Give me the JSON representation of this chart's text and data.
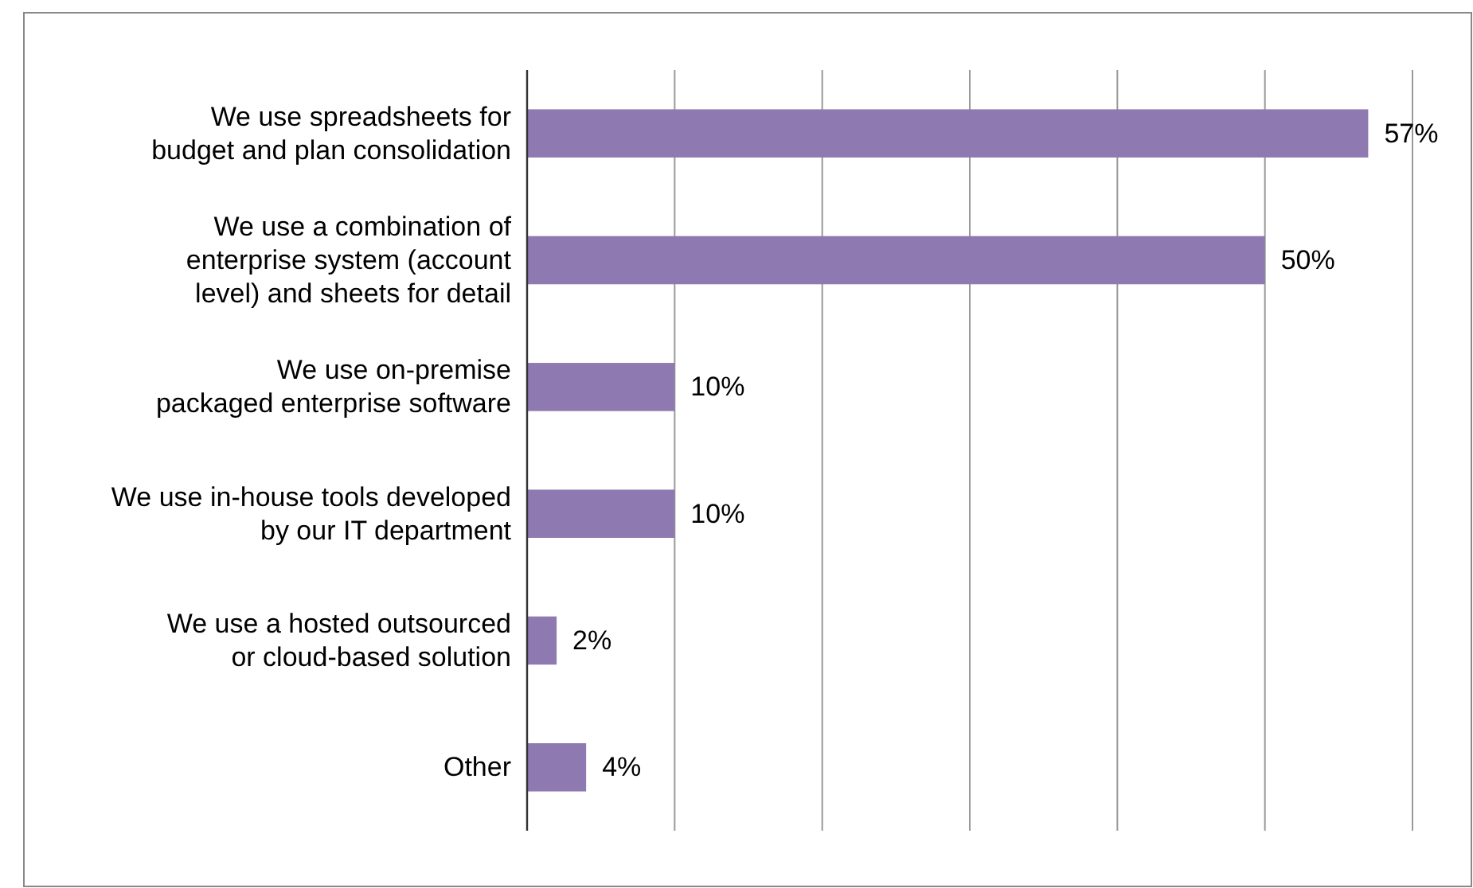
{
  "chart_data": {
    "type": "bar",
    "orientation": "horizontal",
    "categories": [
      "We use spreadsheets for\nbudget and plan consolidation",
      "We use a combination of\nenterprise system (account\nlevel) and sheets for detail",
      "We use on-premise\npackaged enterprise software",
      "We use in-house tools developed\nby our IT department",
      "We use a hosted outsourced\nor cloud-based solution",
      "Other"
    ],
    "values": [
      57,
      50,
      10,
      10,
      2,
      4
    ],
    "value_labels": [
      "57%",
      "50%",
      "10%",
      "10%",
      "2%",
      "4%"
    ],
    "color": "#8e79b0",
    "xlim": [
      0,
      60
    ],
    "xticks": [
      {
        "value": 0,
        "label": null
      },
      {
        "value": 10,
        "label": null
      },
      {
        "value": 20,
        "label": null
      },
      {
        "value": 30,
        "label": null
      },
      {
        "value": 40,
        "label": null
      },
      {
        "value": 50,
        "label": null
      },
      {
        "value": 60,
        "label": null
      }
    ],
    "grid": "x"
  }
}
